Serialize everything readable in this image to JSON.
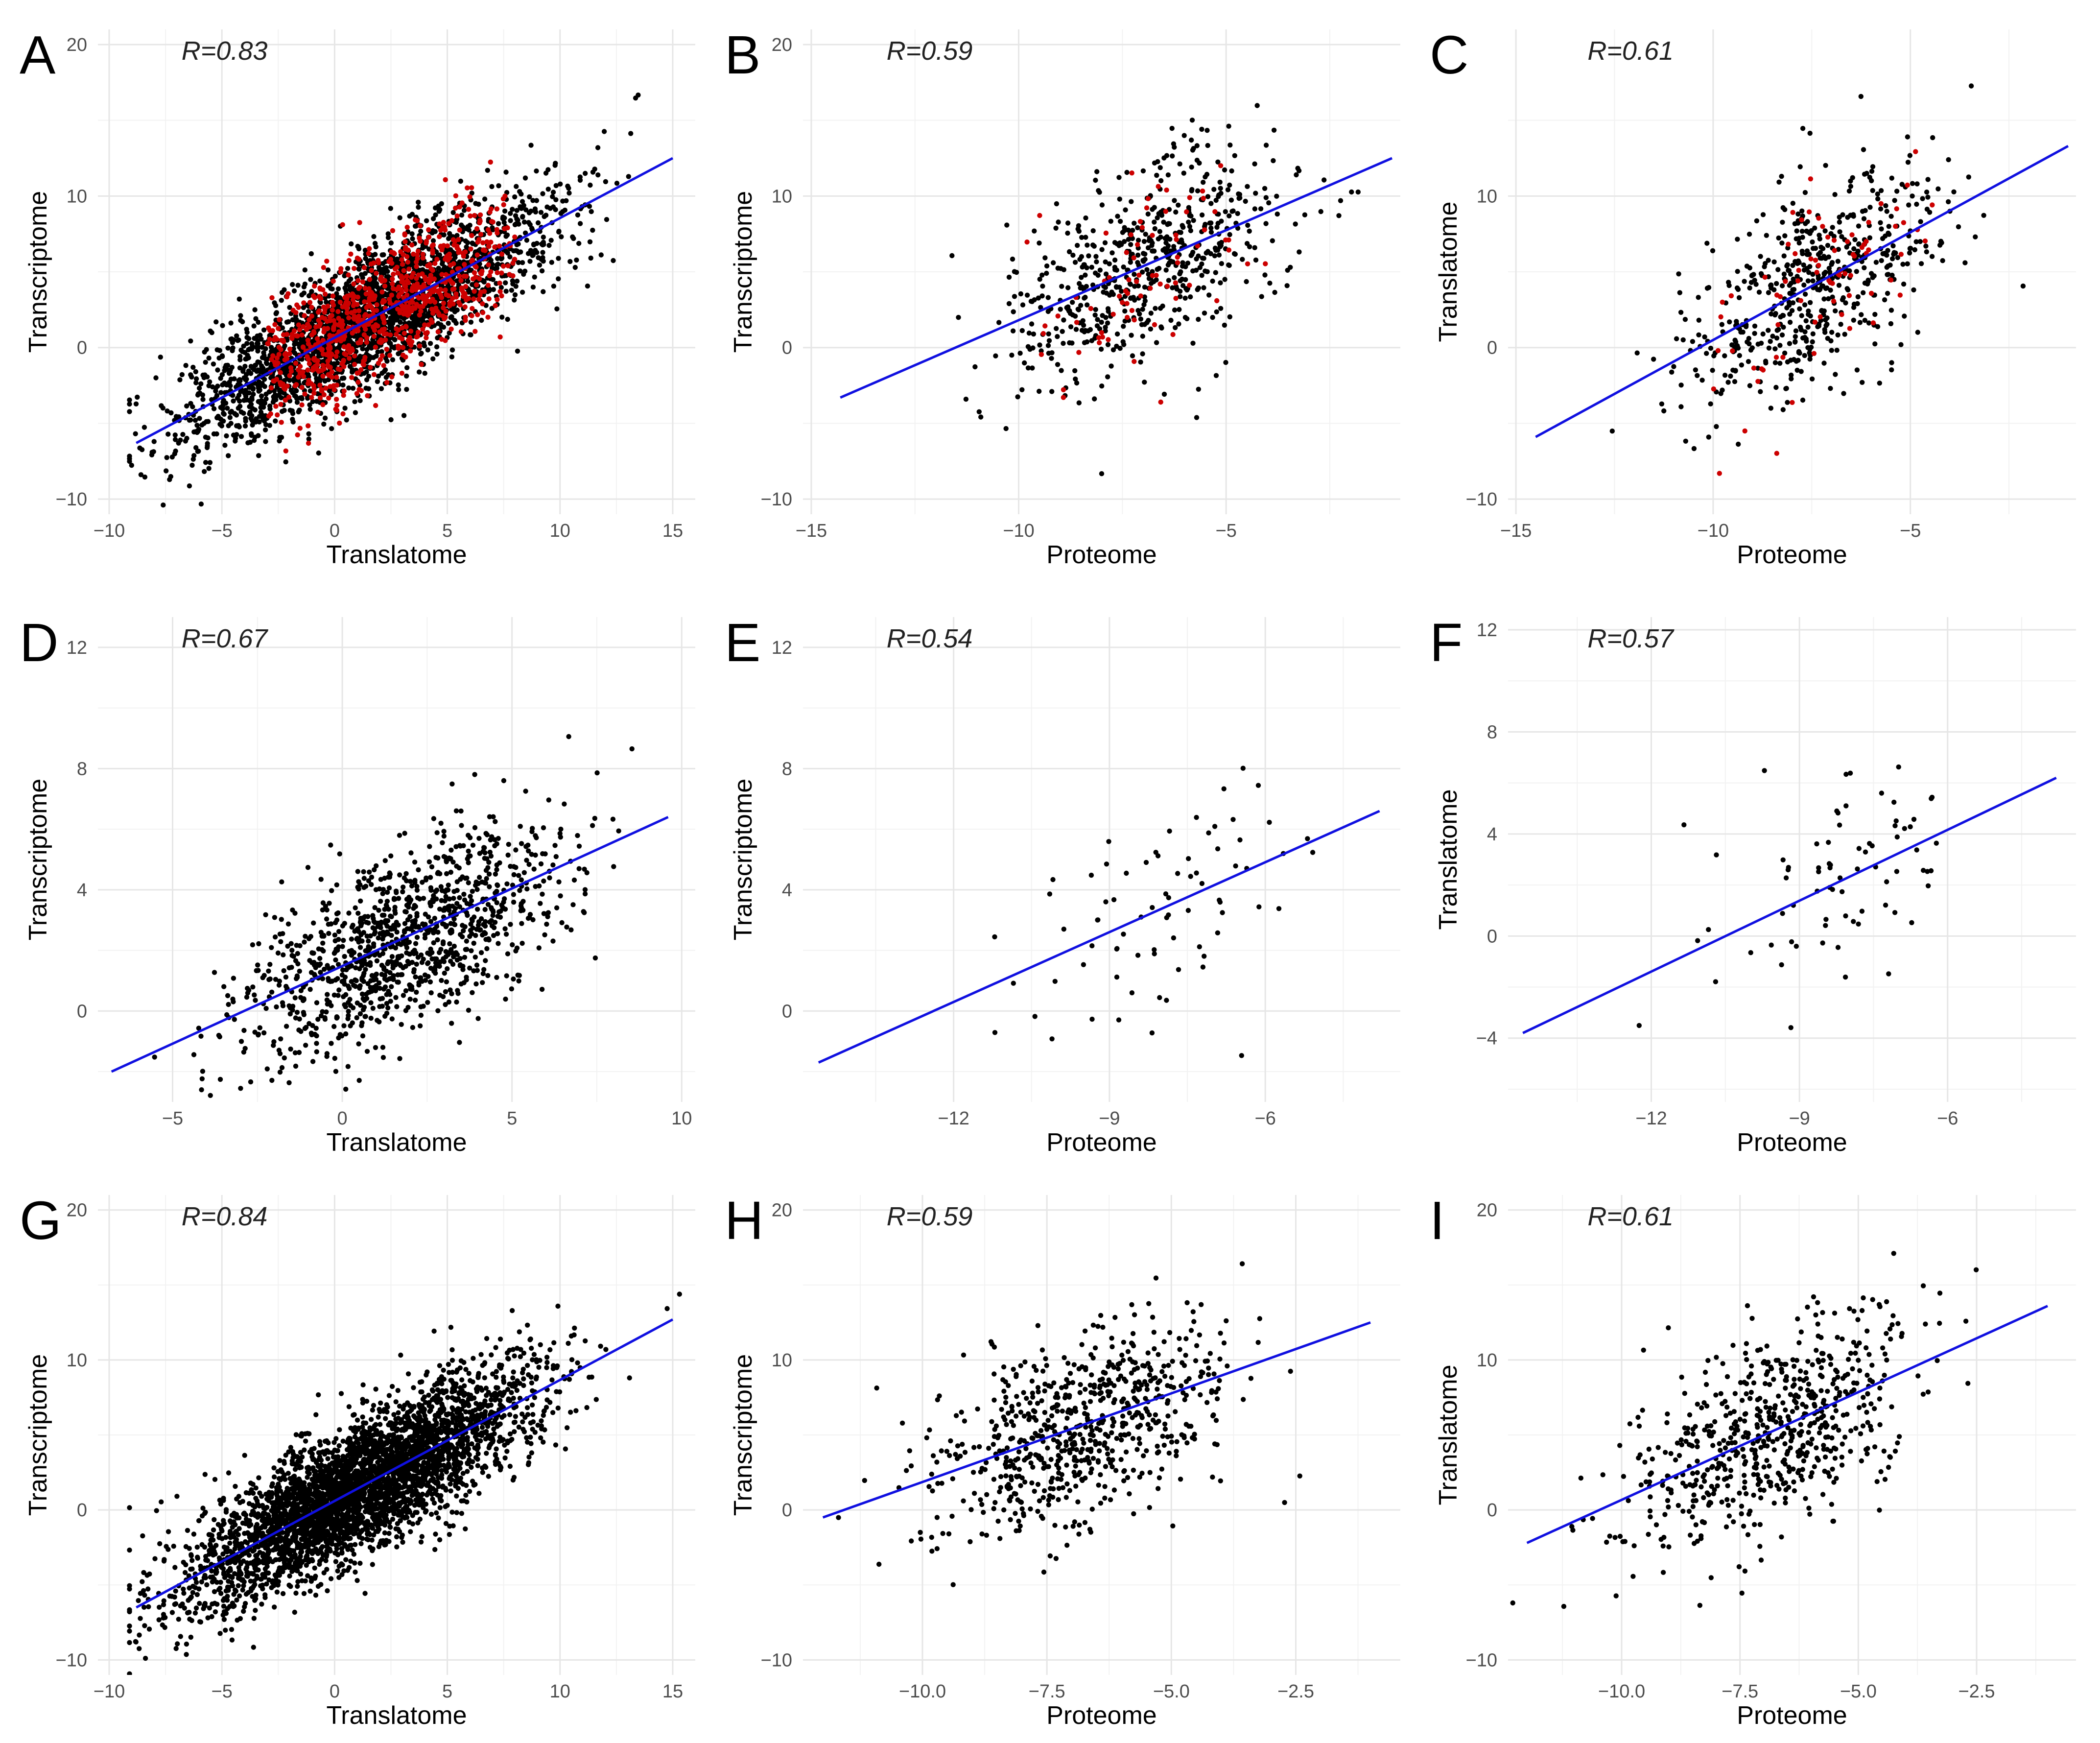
{
  "figure": {
    "background": "#ffffff",
    "colors": {
      "points": "#000000",
      "highlight": "#cc0000",
      "fit_line": "#1010e0",
      "grid": "#e6e6e6"
    }
  },
  "chart_data": [
    {
      "id": "A",
      "type": "scatter",
      "letter": "A",
      "annotation": "R=0.83",
      "xlabel": "Translatome",
      "ylabel": "Transcriptome",
      "xlim": [
        -10.5,
        16
      ],
      "ylim": [
        -11,
        21
      ],
      "xticks": [
        -10,
        -5,
        0,
        5,
        10,
        15
      ],
      "xtick_labels": [
        "−10",
        "−5",
        "0",
        "5",
        "10",
        "15"
      ],
      "yticks": [
        -10,
        0,
        10,
        20
      ],
      "ytick_labels": [
        "−10",
        "0",
        "10",
        "20"
      ],
      "fit": {
        "x": [
          -8.8,
          15
        ],
        "y": [
          -6.3,
          12.5
        ]
      },
      "r": 0.83,
      "x_center": 1.5,
      "x_sd": 3.8,
      "y_noise": 2.2,
      "n_points": 3400,
      "highlight_fraction": 0.3,
      "highlight_x_range": [
        -3,
        8
      ]
    },
    {
      "id": "B",
      "type": "scatter",
      "letter": "B",
      "annotation": "R=0.59",
      "xlabel": "Proteome",
      "ylabel": "Transcriptome",
      "xlim": [
        -15.2,
        -0.8
      ],
      "ylim": [
        -11,
        21
      ],
      "xticks": [
        -15,
        -10,
        -5
      ],
      "xtick_labels": [
        "−15",
        "−10",
        "−5"
      ],
      "yticks": [
        -10,
        0,
        10,
        20
      ],
      "ytick_labels": [
        "−10",
        "0",
        "10",
        "20"
      ],
      "fit": {
        "x": [
          -14.3,
          -1
        ],
        "y": [
          -3.3,
          12.5
        ]
      },
      "r": 0.59,
      "x_center": -7,
      "x_sd": 1.6,
      "y_noise": 3.2,
      "n_points": 700,
      "highlight_fraction": 0.12,
      "highlight_x_range": [
        -10,
        -4
      ]
    },
    {
      "id": "C",
      "type": "scatter",
      "letter": "C",
      "annotation": "R=0.61",
      "xlabel": "Proteome",
      "ylabel": "Translatome",
      "xlim": [
        -15.2,
        -0.8
      ],
      "ylim": [
        -11,
        21
      ],
      "xticks": [
        -15,
        -10,
        -5
      ],
      "xtick_labels": [
        "−15",
        "−10",
        "−5"
      ],
      "yticks": [
        -10,
        0,
        10
      ],
      "ytick_labels": [
        "−10",
        "0",
        "10"
      ],
      "fit": {
        "x": [
          -14.5,
          -1
        ],
        "y": [
          -5.9,
          13.3
        ]
      },
      "r": 0.61,
      "x_center": -7.3,
      "x_sd": 1.6,
      "y_noise": 3.2,
      "n_points": 650,
      "highlight_fraction": 0.12,
      "highlight_x_range": [
        -10,
        -4
      ]
    },
    {
      "id": "D",
      "type": "scatter",
      "letter": "D",
      "annotation": "R=0.67",
      "xlabel": "Translatome",
      "ylabel": "Transcriptome",
      "xlim": [
        -7.2,
        10.4
      ],
      "ylim": [
        -3,
        13
      ],
      "xticks": [
        -5,
        0,
        5,
        10
      ],
      "xtick_labels": [
        "−5",
        "0",
        "5",
        "10"
      ],
      "yticks": [
        0,
        4,
        8,
        12
      ],
      "ytick_labels": [
        "0",
        "4",
        "8",
        "12"
      ],
      "fit": {
        "x": [
          -6.8,
          9.6
        ],
        "y": [
          -2.0,
          6.4
        ]
      },
      "r": 0.67,
      "x_center": 1.8,
      "x_sd": 2.3,
      "y_noise": 1.5,
      "n_points": 1150,
      "highlight_fraction": 0,
      "highlight_x_range": [
        0,
        0
      ]
    },
    {
      "id": "E",
      "type": "scatter",
      "letter": "E",
      "annotation": "R=0.54",
      "xlabel": "Proteome",
      "ylabel": "Transcriptome",
      "xlim": [
        -14.9,
        -3.4
      ],
      "ylim": [
        -3,
        13
      ],
      "xticks": [
        -12,
        -9,
        -6
      ],
      "xtick_labels": [
        "−12",
        "−9",
        "−6"
      ],
      "yticks": [
        0,
        4,
        8,
        12
      ],
      "ytick_labels": [
        "0",
        "4",
        "8",
        "12"
      ],
      "fit": {
        "x": [
          -14.6,
          -3.8
        ],
        "y": [
          -1.7,
          6.6
        ]
      },
      "r": 0.54,
      "x_center": -8,
      "x_sd": 1.3,
      "y_noise": 1.8,
      "n_points": 75,
      "highlight_fraction": 0,
      "highlight_x_range": [
        0,
        0
      ]
    },
    {
      "id": "F",
      "type": "scatter",
      "letter": "F",
      "annotation": "R=0.57",
      "xlabel": "Proteome",
      "ylabel": "Translatome",
      "xlim": [
        -14.9,
        -3.4
      ],
      "ylim": [
        -6.5,
        12.5
      ],
      "xticks": [
        -12,
        -9,
        -6
      ],
      "xtick_labels": [
        "−12",
        "−9",
        "−6"
      ],
      "yticks": [
        -4,
        0,
        4,
        8,
        12
      ],
      "ytick_labels": [
        "−4",
        "0",
        "4",
        "8",
        "12"
      ],
      "fit": {
        "x": [
          -14.6,
          -3.8
        ],
        "y": [
          -3.8,
          6.2
        ]
      },
      "r": 0.57,
      "x_center": -8,
      "x_sd": 1.3,
      "y_noise": 2.0,
      "n_points": 75,
      "highlight_fraction": 0,
      "highlight_x_range": [
        0,
        0
      ]
    },
    {
      "id": "G",
      "type": "scatter",
      "letter": "G",
      "annotation": "R=0.84",
      "xlabel": "Translatome",
      "ylabel": "Transcriptome",
      "xlim": [
        -10.5,
        16
      ],
      "ylim": [
        -11,
        21
      ],
      "xticks": [
        -10,
        -5,
        0,
        5,
        10,
        15
      ],
      "xtick_labels": [
        "−10",
        "−5",
        "0",
        "5",
        "10",
        "15"
      ],
      "yticks": [
        -10,
        0,
        10,
        20
      ],
      "ytick_labels": [
        "−10",
        "0",
        "10",
        "20"
      ],
      "fit": {
        "x": [
          -8.8,
          15
        ],
        "y": [
          -6.5,
          12.7
        ]
      },
      "r": 0.84,
      "x_center": 1.0,
      "x_sd": 3.8,
      "y_noise": 2.2,
      "n_points": 3800,
      "highlight_fraction": 0,
      "highlight_x_range": [
        0,
        0
      ]
    },
    {
      "id": "H",
      "type": "scatter",
      "letter": "H",
      "annotation": "R=0.59",
      "xlabel": "Proteome",
      "ylabel": "Transcriptome",
      "xlim": [
        -12.4,
        -0.4
      ],
      "ylim": [
        -11,
        21
      ],
      "xticks": [
        -10,
        -7.5,
        -5,
        -2.5
      ],
      "xtick_labels": [
        "−10.0",
        "−7.5",
        "−5.0",
        "−2.5"
      ],
      "yticks": [
        -10,
        0,
        10,
        20
      ],
      "ytick_labels": [
        "−10",
        "0",
        "10",
        "20"
      ],
      "fit": {
        "x": [
          -12,
          -1
        ],
        "y": [
          -0.5,
          12.5
        ]
      },
      "r": 0.59,
      "x_center": -6.8,
      "x_sd": 1.5,
      "y_noise": 3.2,
      "n_points": 700,
      "highlight_fraction": 0,
      "highlight_x_range": [
        0,
        0
      ]
    },
    {
      "id": "I",
      "type": "scatter",
      "letter": "I",
      "annotation": "R=0.61",
      "xlabel": "Proteome",
      "ylabel": "Translatome",
      "xlim": [
        -12.4,
        -0.4
      ],
      "ylim": [
        -11,
        21
      ],
      "xticks": [
        -10,
        -7.5,
        -5,
        -2.5
      ],
      "xtick_labels": [
        "−10.0",
        "−7.5",
        "−5.0",
        "−2.5"
      ],
      "yticks": [
        -10,
        0,
        10,
        20
      ],
      "ytick_labels": [
        "−10",
        "0",
        "10",
        "20"
      ],
      "fit": {
        "x": [
          -12,
          -1
        ],
        "y": [
          -2.2,
          13.6
        ]
      },
      "r": 0.61,
      "x_center": -6.8,
      "x_sd": 1.5,
      "y_noise": 3.2,
      "n_points": 650,
      "highlight_fraction": 0,
      "highlight_x_range": [
        0,
        0
      ]
    }
  ]
}
